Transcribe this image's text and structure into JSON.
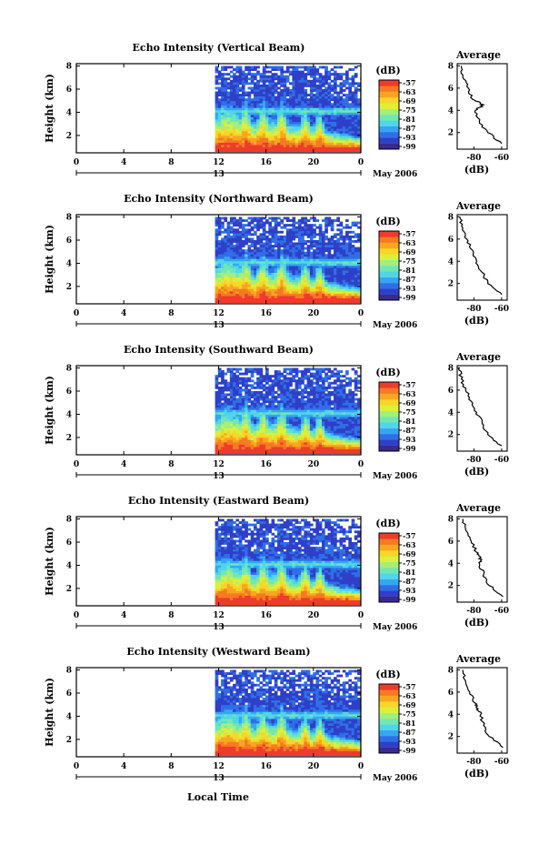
{
  "figure": {
    "x_caption": "Local Time",
    "colorbar_unit": "(dB)",
    "colorbar_ticks": [
      "-57",
      "-63",
      "-69",
      "-75",
      "-81",
      "-87",
      "-93",
      "-99"
    ],
    "colormap": [
      "#3a2a8c",
      "#2f3fc8",
      "#2f6fe6",
      "#37a6f2",
      "#4fd6e8",
      "#72e6b4",
      "#a4ee7a",
      "#dcef3a",
      "#f7d52a",
      "#f8a620",
      "#f57a22",
      "#ef3b2c"
    ],
    "missing_color": "#ffffff"
  },
  "chart_data": [
    {
      "type": "heatmap",
      "title": "Echo Intensity (Vertical Beam)",
      "ylabel": "Height (km)",
      "x_ticks": [
        "0",
        "4",
        "8",
        "12",
        "16",
        "20",
        "0"
      ],
      "x_tick_values": [
        0,
        4,
        8,
        12,
        16,
        20,
        24
      ],
      "xlim": [
        0,
        24
      ],
      "y_ticks": [
        "8",
        "6",
        "4",
        "2"
      ],
      "y_tick_values": [
        8,
        6,
        4,
        2
      ],
      "ylim": [
        0.5,
        8.2
      ],
      "date_day": "13",
      "date_label": "May 2006",
      "colorbar_range_db": [
        -99,
        -57
      ],
      "data_start_hour": 11.7,
      "profile": {
        "title": "Average",
        "xlabel": "(dB)",
        "x_ticks": [
          "-80",
          "-60"
        ],
        "x_tick_values": [
          -80,
          -60
        ],
        "xlim": [
          -92,
          -56
        ],
        "y_ticks": [
          "8",
          "6",
          "4",
          "2"
        ],
        "y_tick_values": [
          8,
          6,
          4,
          2
        ],
        "ylim": [
          0.5,
          8.2
        ],
        "heights": [
          8.0,
          7.0,
          6.0,
          5.0,
          4.5,
          4.0,
          3.0,
          2.0,
          1.0
        ],
        "values_db": [
          -89,
          -88,
          -84,
          -81,
          -73,
          -79,
          -76,
          -70,
          -60
        ]
      }
    },
    {
      "type": "heatmap",
      "title": "Echo Intensity (Northward Beam)",
      "ylabel": "Height (km)",
      "x_ticks": [
        "0",
        "4",
        "8",
        "12",
        "16",
        "20",
        "0"
      ],
      "x_tick_values": [
        0,
        4,
        8,
        12,
        16,
        20,
        24
      ],
      "xlim": [
        0,
        24
      ],
      "y_ticks": [
        "8",
        "6",
        "4",
        "2"
      ],
      "y_tick_values": [
        8,
        6,
        4,
        2
      ],
      "ylim": [
        0.5,
        8.2
      ],
      "date_day": "13",
      "date_label": "May 2006",
      "colorbar_range_db": [
        -99,
        -57
      ],
      "data_start_hour": 11.7,
      "profile": {
        "title": "Average",
        "xlabel": "(dB)",
        "x_ticks": [
          "-80",
          "-60"
        ],
        "x_tick_values": [
          -80,
          -60
        ],
        "xlim": [
          -92,
          -56
        ],
        "y_ticks": [
          "8",
          "6",
          "4",
          "2"
        ],
        "y_tick_values": [
          8,
          6,
          4,
          2
        ],
        "ylim": [
          0.5,
          8.2
        ],
        "heights": [
          8.0,
          7.0,
          6.0,
          5.0,
          4.0,
          3.0,
          2.0,
          1.0
        ],
        "values_db": [
          -90,
          -88,
          -85,
          -81,
          -78,
          -74,
          -70,
          -60
        ]
      }
    },
    {
      "type": "heatmap",
      "title": "Echo Intensity (Southward Beam)",
      "ylabel": "Height (km)",
      "x_ticks": [
        "0",
        "4",
        "8",
        "12",
        "16",
        "20",
        "0"
      ],
      "x_tick_values": [
        0,
        4,
        8,
        12,
        16,
        20,
        24
      ],
      "xlim": [
        0,
        24
      ],
      "y_ticks": [
        "8",
        "6",
        "4",
        "2"
      ],
      "y_tick_values": [
        8,
        6,
        4,
        2
      ],
      "ylim": [
        0.5,
        8.2
      ],
      "date_day": "13",
      "date_label": "May 2006",
      "colorbar_range_db": [
        -99,
        -57
      ],
      "data_start_hour": 11.7,
      "profile": {
        "title": "Average",
        "xlabel": "(dB)",
        "x_ticks": [
          "-80",
          "-60"
        ],
        "x_tick_values": [
          -80,
          -60
        ],
        "xlim": [
          -92,
          -56
        ],
        "y_ticks": [
          "8",
          "6",
          "4",
          "2"
        ],
        "y_tick_values": [
          8,
          6,
          4,
          2
        ],
        "ylim": [
          0.5,
          8.2
        ],
        "heights": [
          8.0,
          7.0,
          6.0,
          5.0,
          4.0,
          3.0,
          2.0,
          1.0
        ],
        "values_db": [
          -91,
          -89,
          -86,
          -82,
          -78,
          -74,
          -70,
          -60
        ]
      }
    },
    {
      "type": "heatmap",
      "title": "Echo Intensity (Eastward Beam)",
      "ylabel": "Height (km)",
      "x_ticks": [
        "0",
        "4",
        "8",
        "12",
        "16",
        "20",
        "0"
      ],
      "x_tick_values": [
        0,
        4,
        8,
        12,
        16,
        20,
        24
      ],
      "xlim": [
        0,
        24
      ],
      "y_ticks": [
        "8",
        "6",
        "4",
        "2"
      ],
      "y_tick_values": [
        8,
        6,
        4,
        2
      ],
      "ylim": [
        0.5,
        8.2
      ],
      "date_day": "13",
      "date_label": "May 2006",
      "colorbar_range_db": [
        -99,
        -57
      ],
      "data_start_hour": 11.7,
      "profile": {
        "title": "Average",
        "xlabel": "(dB)",
        "x_ticks": [
          "-80",
          "-60"
        ],
        "x_tick_values": [
          -80,
          -60
        ],
        "xlim": [
          -92,
          -56
        ],
        "y_ticks": [
          "8",
          "6",
          "4",
          "2"
        ],
        "y_tick_values": [
          8,
          6,
          4,
          2
        ],
        "ylim": [
          0.5,
          8.2
        ],
        "heights": [
          8.0,
          7.0,
          6.0,
          5.0,
          4.5,
          4.0,
          3.0,
          2.0,
          1.0
        ],
        "values_db": [
          -88,
          -86,
          -82,
          -78,
          -75,
          -76,
          -73,
          -69,
          -59
        ]
      }
    },
    {
      "type": "heatmap",
      "title": "Echo Intensity (Westward Beam)",
      "ylabel": "Height (km)",
      "x_ticks": [
        "0",
        "4",
        "8",
        "12",
        "16",
        "20",
        "0"
      ],
      "x_tick_values": [
        0,
        4,
        8,
        12,
        16,
        20,
        24
      ],
      "xlim": [
        0,
        24
      ],
      "y_ticks": [
        "8",
        "6",
        "4",
        "2"
      ],
      "y_tick_values": [
        8,
        6,
        4,
        2
      ],
      "ylim": [
        0.5,
        8.2
      ],
      "date_day": "13",
      "date_label": "May 2006",
      "colorbar_range_db": [
        -99,
        -57
      ],
      "data_start_hour": 11.7,
      "profile": {
        "title": "Average",
        "xlabel": "(dB)",
        "x_ticks": [
          "-80",
          "-60"
        ],
        "x_tick_values": [
          -80,
          -60
        ],
        "xlim": [
          -92,
          -56
        ],
        "y_ticks": [
          "8",
          "6",
          "4",
          "2"
        ],
        "y_tick_values": [
          8,
          6,
          4,
          2
        ],
        "ylim": [
          0.5,
          8.2
        ],
        "heights": [
          8.0,
          7.0,
          6.0,
          5.0,
          4.5,
          4.0,
          3.0,
          2.0,
          1.0
        ],
        "values_db": [
          -88,
          -86,
          -83,
          -79,
          -77,
          -75,
          -73,
          -69,
          -59
        ]
      }
    }
  ]
}
